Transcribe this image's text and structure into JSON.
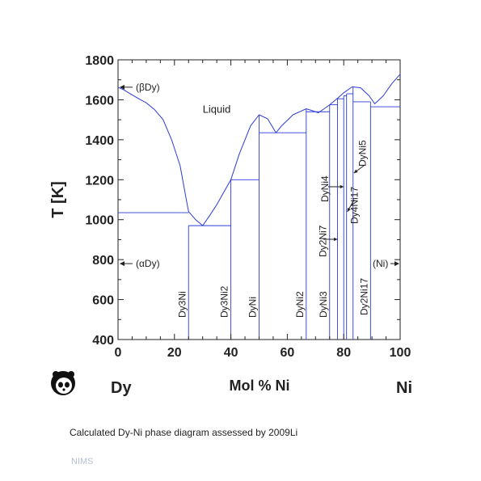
{
  "chart_data": {
    "type": "line",
    "title": "",
    "xlabel": "Mol % Ni",
    "ylabel": "T [K]",
    "xlim": [
      0,
      100
    ],
    "ylim": [
      400,
      1800
    ],
    "x_ticks": [
      0,
      20,
      40,
      60,
      80,
      100
    ],
    "y_ticks": [
      400,
      600,
      800,
      1000,
      1200,
      1400,
      1600,
      1800
    ],
    "left_element": "Dy",
    "right_element": "Ni",
    "grid": false,
    "liquidus": [
      [
        0,
        1663
      ],
      [
        2,
        1650
      ],
      [
        5,
        1625
      ],
      [
        8,
        1600
      ],
      [
        10,
        1585
      ],
      [
        13,
        1550
      ],
      [
        16,
        1500
      ],
      [
        19,
        1400
      ],
      [
        22,
        1270
      ],
      [
        24,
        1115
      ],
      [
        25,
        1040
      ],
      [
        27.5,
        1000
      ],
      [
        30,
        970
      ],
      [
        32,
        1010
      ],
      [
        35,
        1075
      ],
      [
        38,
        1150
      ],
      [
        40,
        1200
      ],
      [
        43,
        1330
      ],
      [
        47,
        1470
      ],
      [
        50,
        1525
      ],
      [
        53,
        1505
      ],
      [
        56,
        1435
      ],
      [
        58,
        1470
      ],
      [
        62,
        1525
      ],
      [
        66.7,
        1555
      ],
      [
        69,
        1545
      ],
      [
        71,
        1535
      ],
      [
        73,
        1555
      ],
      [
        75,
        1575
      ],
      [
        78,
        1610
      ],
      [
        80,
        1635
      ],
      [
        83,
        1665
      ],
      [
        86,
        1660
      ],
      [
        89,
        1620
      ],
      [
        91,
        1580
      ],
      [
        94,
        1620
      ],
      [
        97,
        1680
      ],
      [
        100,
        1728
      ]
    ],
    "compounds": [
      {
        "name": "Dy3Ni",
        "x": 25,
        "top": 970
      },
      {
        "name": "Dy3Ni2",
        "x": 40,
        "top": 1200
      },
      {
        "name": "DyNi",
        "x": 50,
        "top": 1525
      },
      {
        "name": "DyNi2",
        "x": 66.7,
        "top": 1555
      },
      {
        "name": "DyNi3",
        "x": 75,
        "top": 1575
      },
      {
        "name": "Dy2Ni7",
        "x": 77.8,
        "top": 1605
      },
      {
        "name": "DyNi4",
        "x": 80,
        "top": 1620
      },
      {
        "name": "Dy4Ni17",
        "x": 81,
        "top": 1630
      },
      {
        "name": "DyNi5",
        "x": 83.3,
        "top": 1665
      },
      {
        "name": "Dy2Ni17",
        "x": 89.5,
        "top": 1590
      }
    ],
    "invariants": [
      {
        "T": 1035,
        "x1": 0,
        "x2": 25
      },
      {
        "T": 970,
        "x1": 25,
        "x2": 40
      },
      {
        "T": 1200,
        "x1": 40,
        "x2": 50
      },
      {
        "T": 1435,
        "x1": 50,
        "x2": 66.7
      },
      {
        "T": 1540,
        "x1": 66.7,
        "x2": 75
      },
      {
        "T": 1575,
        "x1": 75,
        "x2": 77.8
      },
      {
        "T": 1605,
        "x1": 77.8,
        "x2": 80
      },
      {
        "T": 1620,
        "x1": 80,
        "x2": 81
      },
      {
        "T": 1630,
        "x1": 81,
        "x2": 83.3
      },
      {
        "T": 1590,
        "x1": 83.3,
        "x2": 89.5
      },
      {
        "T": 1565,
        "x1": 89.5,
        "x2": 100
      }
    ],
    "region_labels": [
      {
        "text": "Liquid",
        "x": 30,
        "T": 1535
      }
    ],
    "phase_labels": [
      {
        "text": "(βDy)",
        "T": 1663,
        "side": "left"
      },
      {
        "text": "(αDy)",
        "T": 780,
        "side": "left"
      },
      {
        "text": "(Ni)",
        "T": 780,
        "side": "right"
      }
    ]
  },
  "caption": "Calculated Dy-Ni phase diagram assessed by 2009Li",
  "source_label": "NIMS"
}
